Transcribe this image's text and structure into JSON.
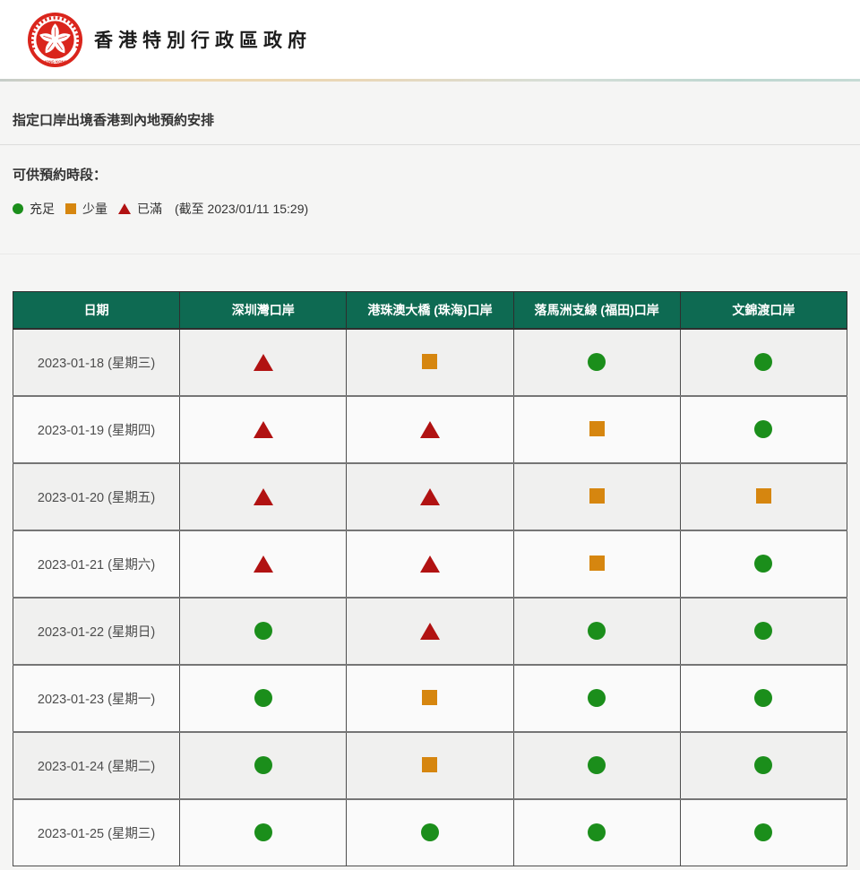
{
  "header": {
    "title": "香港特別行政區政府",
    "emblem": "hksar-regional-emblem",
    "emblem_text": "HONG KONG"
  },
  "page": {
    "section_title": "指定口岸出境香港到內地預約安排",
    "slots_label": "可供預約時段：",
    "legend": {
      "items": [
        {
          "status": "available",
          "shape": "circle",
          "label": "充足"
        },
        {
          "status": "limited",
          "shape": "square",
          "label": "少量"
        },
        {
          "status": "full",
          "shape": "triangle",
          "label": "已滿"
        }
      ],
      "as_of": "(截至 2023/01/11 15:29)"
    }
  },
  "colors": {
    "available": "#1b8e1b",
    "limited": "#d6860f",
    "full": "#b11212",
    "table_header_green": "#0e6a52",
    "emblem_red": "#da251c"
  },
  "status_shapes": {
    "available": "circle",
    "limited": "square",
    "full": "triangle"
  },
  "table": {
    "columns": [
      "日期",
      "深圳灣口岸",
      "港珠澳大橋 (珠海)口岸",
      "落馬洲支線 (福田)口岸",
      "文錦渡口岸"
    ],
    "rows": [
      {
        "date": "2023-01-18 (星期三)",
        "statuses": [
          "full",
          "limited",
          "available",
          "available"
        ]
      },
      {
        "date": "2023-01-19 (星期四)",
        "statuses": [
          "full",
          "full",
          "limited",
          "available"
        ]
      },
      {
        "date": "2023-01-20 (星期五)",
        "statuses": [
          "full",
          "full",
          "limited",
          "limited"
        ]
      },
      {
        "date": "2023-01-21 (星期六)",
        "statuses": [
          "full",
          "full",
          "limited",
          "available"
        ]
      },
      {
        "date": "2023-01-22 (星期日)",
        "statuses": [
          "available",
          "full",
          "available",
          "available"
        ]
      },
      {
        "date": "2023-01-23 (星期一)",
        "statuses": [
          "available",
          "limited",
          "available",
          "available"
        ]
      },
      {
        "date": "2023-01-24 (星期二)",
        "statuses": [
          "available",
          "limited",
          "available",
          "available"
        ]
      },
      {
        "date": "2023-01-25 (星期三)",
        "statuses": [
          "available",
          "available",
          "available",
          "available"
        ]
      }
    ]
  }
}
